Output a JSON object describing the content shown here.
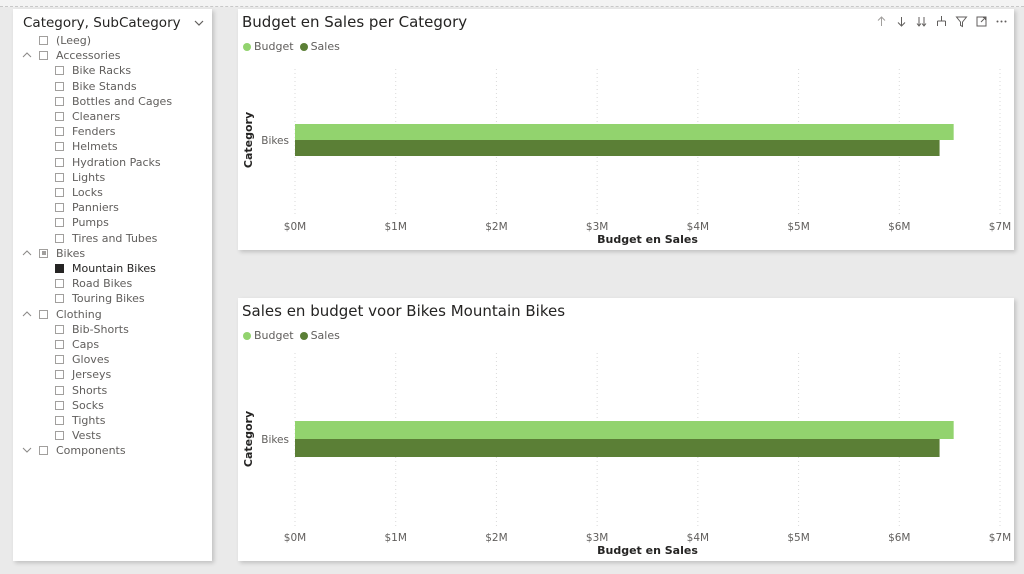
{
  "slicer": {
    "title": "Category, SubCategory",
    "items": [
      {
        "label": "(Leeg)",
        "level": 0,
        "expander": "none",
        "state": "unchecked"
      },
      {
        "label": "Accessories",
        "level": 0,
        "expander": "up",
        "state": "unchecked"
      },
      {
        "label": "Bike Racks",
        "level": 1,
        "expander": "none",
        "state": "unchecked"
      },
      {
        "label": "Bike Stands",
        "level": 1,
        "expander": "none",
        "state": "unchecked"
      },
      {
        "label": "Bottles and Cages",
        "level": 1,
        "expander": "none",
        "state": "unchecked"
      },
      {
        "label": "Cleaners",
        "level": 1,
        "expander": "none",
        "state": "unchecked"
      },
      {
        "label": "Fenders",
        "level": 1,
        "expander": "none",
        "state": "unchecked"
      },
      {
        "label": "Helmets",
        "level": 1,
        "expander": "none",
        "state": "unchecked"
      },
      {
        "label": "Hydration Packs",
        "level": 1,
        "expander": "none",
        "state": "unchecked"
      },
      {
        "label": "Lights",
        "level": 1,
        "expander": "none",
        "state": "unchecked"
      },
      {
        "label": "Locks",
        "level": 1,
        "expander": "none",
        "state": "unchecked"
      },
      {
        "label": "Panniers",
        "level": 1,
        "expander": "none",
        "state": "unchecked"
      },
      {
        "label": "Pumps",
        "level": 1,
        "expander": "none",
        "state": "unchecked"
      },
      {
        "label": "Tires and Tubes",
        "level": 1,
        "expander": "none",
        "state": "unchecked"
      },
      {
        "label": "Bikes",
        "level": 0,
        "expander": "up",
        "state": "partial"
      },
      {
        "label": "Mountain Bikes",
        "level": 1,
        "expander": "none",
        "state": "checked"
      },
      {
        "label": "Road Bikes",
        "level": 1,
        "expander": "none",
        "state": "unchecked"
      },
      {
        "label": "Touring Bikes",
        "level": 1,
        "expander": "none",
        "state": "unchecked"
      },
      {
        "label": "Clothing",
        "level": 0,
        "expander": "up",
        "state": "unchecked"
      },
      {
        "label": "Bib-Shorts",
        "level": 1,
        "expander": "none",
        "state": "unchecked"
      },
      {
        "label": "Caps",
        "level": 1,
        "expander": "none",
        "state": "unchecked"
      },
      {
        "label": "Gloves",
        "level": 1,
        "expander": "none",
        "state": "unchecked"
      },
      {
        "label": "Jerseys",
        "level": 1,
        "expander": "none",
        "state": "unchecked"
      },
      {
        "label": "Shorts",
        "level": 1,
        "expander": "none",
        "state": "unchecked"
      },
      {
        "label": "Socks",
        "level": 1,
        "expander": "none",
        "state": "unchecked"
      },
      {
        "label": "Tights",
        "level": 1,
        "expander": "none",
        "state": "unchecked"
      },
      {
        "label": "Vests",
        "level": 1,
        "expander": "none",
        "state": "unchecked"
      },
      {
        "label": "Components",
        "level": 0,
        "expander": "down",
        "state": "unchecked"
      }
    ]
  },
  "toolbar_icons": [
    "drill-up-icon",
    "drill-down-icon",
    "expand-next-level-icon",
    "expand-hierarchy-icon",
    "filter-icon",
    "focus-mode-icon",
    "more-options-icon"
  ],
  "colors": {
    "budget": "#92d36e",
    "sales": "#5b7f36",
    "gridline": "#d9d9d9",
    "axis_text": "#605e5c"
  },
  "chart_data": [
    {
      "type": "bar",
      "orientation": "horizontal",
      "title": "Budget en Sales per Category",
      "legend": [
        "Budget",
        "Sales"
      ],
      "categories": [
        "Bikes"
      ],
      "series": [
        {
          "name": "Budget",
          "values": [
            6540000
          ]
        },
        {
          "name": "Sales",
          "values": [
            6400000
          ]
        }
      ],
      "xlabel": "Budget en Sales",
      "ylabel": "Category",
      "xlim": [
        0,
        7000000
      ],
      "xticks": [
        0,
        1000000,
        2000000,
        3000000,
        4000000,
        5000000,
        6000000,
        7000000
      ],
      "xtick_labels": [
        "$0M",
        "$1M",
        "$2M",
        "$3M",
        "$4M",
        "$5M",
        "$6M",
        "$7M"
      ],
      "grid": true,
      "legend_position": "top-left"
    },
    {
      "type": "bar",
      "orientation": "horizontal",
      "title": "Sales en budget voor Bikes Mountain Bikes",
      "legend": [
        "Budget",
        "Sales"
      ],
      "categories": [
        "Bikes"
      ],
      "series": [
        {
          "name": "Budget",
          "values": [
            6540000
          ]
        },
        {
          "name": "Sales",
          "values": [
            6400000
          ]
        }
      ],
      "xlabel": "Budget en Sales",
      "ylabel": "Category",
      "xlim": [
        0,
        7000000
      ],
      "xticks": [
        0,
        1000000,
        2000000,
        3000000,
        4000000,
        5000000,
        6000000,
        7000000
      ],
      "xtick_labels": [
        "$0M",
        "$1M",
        "$2M",
        "$3M",
        "$4M",
        "$5M",
        "$6M",
        "$7M"
      ],
      "grid": true,
      "legend_position": "top-left"
    }
  ]
}
